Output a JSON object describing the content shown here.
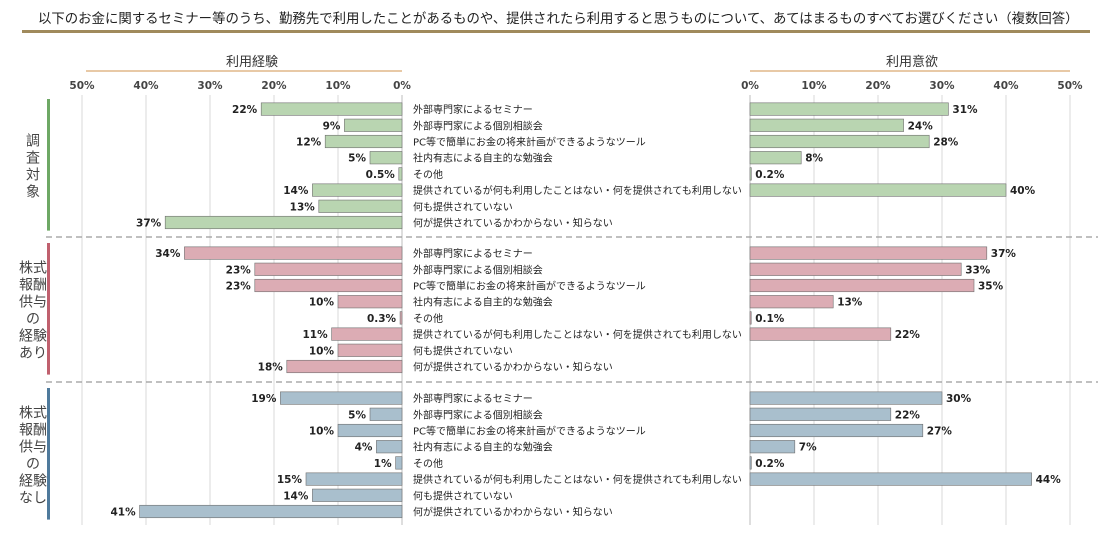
{
  "title": "以下のお金に関するセミナー等のうち、勤務先で利用したことがあるものや、提供されたら利用すると思うものについて、あてはまるものすべてお選びください（複数回答）",
  "colors": {
    "title_rule": "#a08a5c",
    "header_rule": "#e8c9a6",
    "grid": "#d9d9d9",
    "separator": "#9a9a9a",
    "bar_border": "#6e6e6e",
    "groups": [
      "#b9d5b1",
      "#dcacb4",
      "#a9bfcd"
    ],
    "side_bars": [
      "#6ea865",
      "#c0606e",
      "#4f7a9c"
    ]
  },
  "chart_data": [
    {
      "type": "bar",
      "orientation": "horizontal",
      "direction": "right-to-left",
      "title": "利用経験",
      "xlim": [
        0,
        50
      ],
      "ticks": [
        50,
        40,
        30,
        20,
        10,
        0
      ],
      "tick_labels": [
        "50%",
        "40%",
        "30%",
        "20%",
        "10%",
        "0%"
      ],
      "categories": [
        "外部専門家によるセミナー",
        "外部専門家による個別相談会",
        "PC等で簡単にお金の将来計画ができるようなツール",
        "社内有志による自主的な勉強会",
        "その他",
        "提供されているが何も利用したことはない・何を提供されても利用しない",
        "何も提供されていない",
        "何が提供されているかわからない・知らない"
      ],
      "series": [
        {
          "name": "調査対象",
          "values": [
            22,
            9,
            12,
            5,
            0.5,
            14,
            13,
            37
          ],
          "labels": [
            "22%",
            "9%",
            "12%",
            "5%",
            "0.5%",
            "14%",
            "13%",
            "37%"
          ]
        },
        {
          "name": "株式報酬供与の経験あり",
          "values": [
            34,
            23,
            23,
            10,
            0.3,
            11,
            10,
            18
          ],
          "labels": [
            "34%",
            "23%",
            "23%",
            "10%",
            "0.3%",
            "11%",
            "10%",
            "18%"
          ]
        },
        {
          "name": "株式報酬供与の経験なし",
          "values": [
            19,
            5,
            10,
            4,
            1,
            15,
            14,
            41
          ],
          "labels": [
            "19%",
            "5%",
            "10%",
            "4%",
            "1%",
            "15%",
            "14%",
            "41%"
          ]
        }
      ]
    },
    {
      "type": "bar",
      "orientation": "horizontal",
      "direction": "left-to-right",
      "title": "利用意欲",
      "xlim": [
        0,
        50
      ],
      "ticks": [
        0,
        10,
        20,
        30,
        40,
        50
      ],
      "tick_labels": [
        "0%",
        "10%",
        "20%",
        "30%",
        "40%",
        "50%"
      ],
      "categories": [
        "外部専門家によるセミナー",
        "外部専門家による個別相談会",
        "PC等で簡単にお金の将来計画ができるようなツール",
        "社内有志による自主的な勉強会",
        "その他",
        "提供されているが何も利用したことはない・何を提供されても利用しない"
      ],
      "series": [
        {
          "name": "調査対象",
          "values": [
            31,
            24,
            28,
            8,
            0.2,
            40
          ],
          "labels": [
            "31%",
            "24%",
            "28%",
            "8%",
            "0.2%",
            "40%"
          ]
        },
        {
          "name": "株式報酬供与の経験あり",
          "values": [
            37,
            33,
            35,
            13,
            0.1,
            22
          ],
          "labels": [
            "37%",
            "33%",
            "35%",
            "13%",
            "0.1%",
            "22%"
          ]
        },
        {
          "name": "株式報酬供与の経験なし",
          "values": [
            30,
            22,
            27,
            7,
            0.2,
            44
          ],
          "labels": [
            "30%",
            "22%",
            "27%",
            "7%",
            "0.2%",
            "44%"
          ]
        }
      ]
    }
  ],
  "group_labels": [
    [
      "調",
      "査",
      "対",
      "象"
    ],
    [
      "株式",
      "報酬",
      "供与",
      "の",
      "経験",
      "あり"
    ],
    [
      "株式",
      "報酬",
      "供与",
      "の",
      "経験",
      "なし"
    ]
  ]
}
